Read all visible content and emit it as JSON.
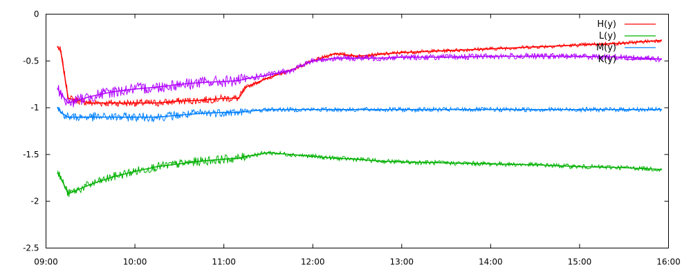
{
  "chart_data": {
    "type": "line",
    "title": "",
    "xlabel": "",
    "ylabel": "",
    "xlim": [
      "09:00",
      "16:00"
    ],
    "ylim": [
      -2.5,
      0
    ],
    "x_ticks": [
      "09:00",
      "10:00",
      "11:00",
      "12:00",
      "13:00",
      "14:00",
      "15:00",
      "16:00"
    ],
    "y_ticks": [
      "0",
      "-0.5",
      "-1",
      "-1.5",
      "-2",
      "-2.5"
    ],
    "grid": false,
    "legend_position": "top-right",
    "x": [
      "09:08",
      "09:10",
      "09:15",
      "09:30",
      "09:45",
      "10:00",
      "10:15",
      "10:30",
      "10:45",
      "11:00",
      "11:10",
      "11:15",
      "11:30",
      "11:45",
      "12:00",
      "12:15",
      "12:30",
      "12:45",
      "13:00",
      "13:30",
      "14:00",
      "14:30",
      "15:00",
      "15:30",
      "15:55"
    ],
    "series": [
      {
        "name": "H(y)",
        "color": "#ff0000",
        "values": [
          -0.35,
          -0.4,
          -0.9,
          -0.95,
          -0.95,
          -0.95,
          -0.95,
          -0.93,
          -0.92,
          -0.9,
          -0.9,
          -0.78,
          -0.68,
          -0.6,
          -0.5,
          -0.42,
          -0.45,
          -0.43,
          -0.41,
          -0.39,
          -0.37,
          -0.35,
          -0.33,
          -0.31,
          -0.28
        ]
      },
      {
        "name": "L(y)",
        "color": "#00b000",
        "values": [
          -1.7,
          -1.75,
          -1.92,
          -1.82,
          -1.74,
          -1.68,
          -1.63,
          -1.6,
          -1.57,
          -1.55,
          -1.54,
          -1.52,
          -1.48,
          -1.5,
          -1.52,
          -1.54,
          -1.55,
          -1.57,
          -1.58,
          -1.59,
          -1.6,
          -1.61,
          -1.63,
          -1.64,
          -1.66
        ]
      },
      {
        "name": "M(y)",
        "color": "#0080ff",
        "values": [
          -1.0,
          -1.05,
          -1.1,
          -1.1,
          -1.1,
          -1.1,
          -1.1,
          -1.08,
          -1.06,
          -1.05,
          -1.05,
          -1.04,
          -1.02,
          -1.02,
          -1.02,
          -1.02,
          -1.02,
          -1.02,
          -1.02,
          -1.02,
          -1.02,
          -1.02,
          -1.02,
          -1.02,
          -1.02
        ]
      },
      {
        "name": "K(y)",
        "color": "#b000ff",
        "values": [
          -0.8,
          -0.85,
          -0.95,
          -0.88,
          -0.83,
          -0.8,
          -0.78,
          -0.75,
          -0.73,
          -0.72,
          -0.71,
          -0.69,
          -0.65,
          -0.6,
          -0.5,
          -0.47,
          -0.47,
          -0.47,
          -0.46,
          -0.46,
          -0.45,
          -0.45,
          -0.45,
          -0.46,
          -0.48
        ]
      }
    ]
  }
}
